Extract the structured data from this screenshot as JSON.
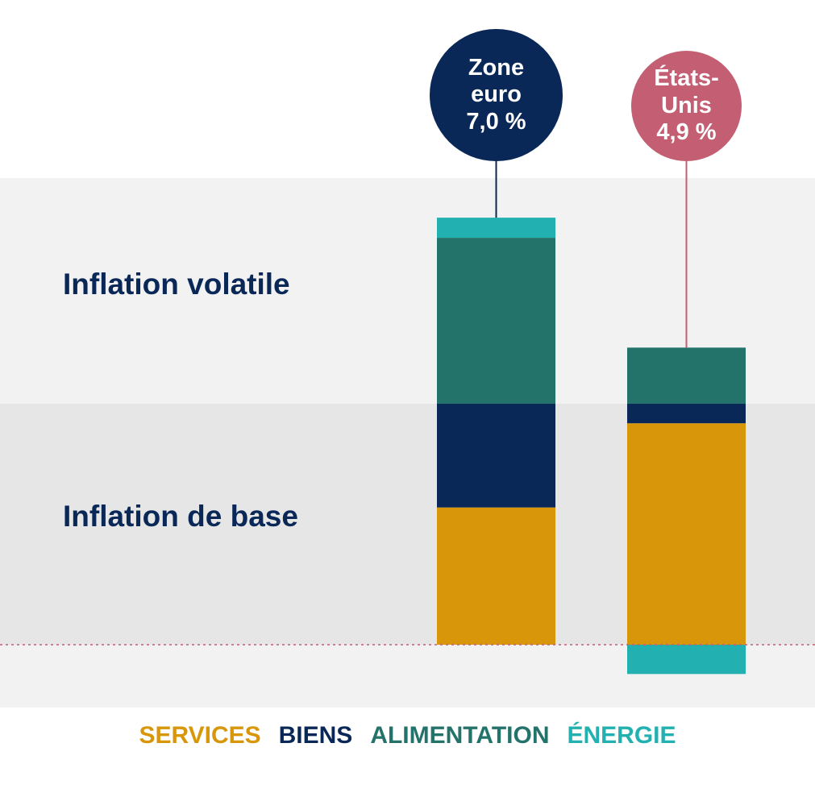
{
  "chart_data": {
    "type": "stacked-bar",
    "band_labels": [
      "Inflation volatile",
      "Inflation de base"
    ],
    "categories": [
      "Zone euro",
      "États-Unis"
    ],
    "totals": [
      7.0,
      4.9
    ],
    "total_labels": [
      "7,0 %",
      "4,9 %"
    ],
    "total_colors": [
      "#0a2857",
      "#c45e72"
    ],
    "series": [
      {
        "name": "SERVICES",
        "color": "#d8960b",
        "values": [
          2.25,
          3.63
        ]
      },
      {
        "name": "BIENS",
        "color": "#0a2857",
        "values": [
          1.7,
          0.32
        ]
      },
      {
        "name": "ALIMENTATION",
        "color": "#24736a",
        "values": [
          2.72,
          0.92
        ]
      },
      {
        "name": "ÉNERGIE",
        "color": "#22b0b0",
        "values": [
          0.33,
          -0.48
        ]
      }
    ]
  }
}
